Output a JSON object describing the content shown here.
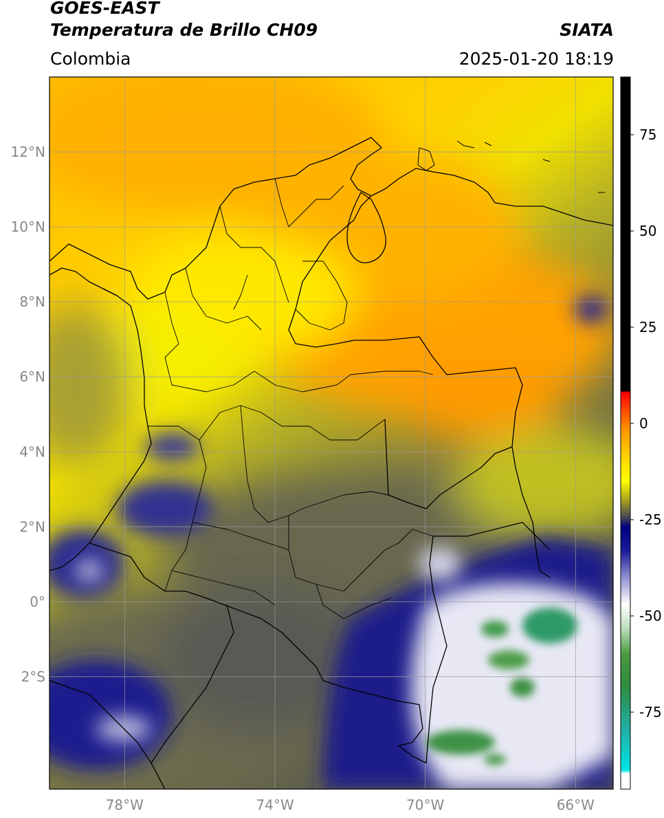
{
  "header": {
    "satellite": "GOES-EAST",
    "product": "Temperatura de Brillo CH09",
    "brand": "SIATA",
    "region": "Colombia",
    "timestamp": "2025-01-20 18:19"
  },
  "map": {
    "lon_range": [
      -80.0,
      -65.0
    ],
    "lat_range": [
      -5.0,
      14.0
    ],
    "lat_ticks": [
      {
        "value": 12,
        "label": "12°N"
      },
      {
        "value": 10,
        "label": "10°N"
      },
      {
        "value": 8,
        "label": "8°N"
      },
      {
        "value": 6,
        "label": "6°N"
      },
      {
        "value": 4,
        "label": "4°N"
      },
      {
        "value": 2,
        "label": "2°N"
      },
      {
        "value": 0,
        "label": "0°"
      },
      {
        "value": -2,
        "label": "2°S"
      }
    ],
    "lon_ticks": [
      {
        "value": -78,
        "label": "78°W"
      },
      {
        "value": -74,
        "label": "74°W"
      },
      {
        "value": -70,
        "label": "70°W"
      },
      {
        "value": -66,
        "label": "66°W"
      }
    ],
    "grid": true
  },
  "colorbar": {
    "range": [
      -95,
      90
    ],
    "ticks": [
      {
        "value": 75,
        "label": "75"
      },
      {
        "value": 50,
        "label": "50"
      },
      {
        "value": 25,
        "label": "25"
      },
      {
        "value": 0,
        "label": "0"
      },
      {
        "value": -25,
        "label": "-25"
      },
      {
        "value": -50,
        "label": "-50"
      },
      {
        "value": -75,
        "label": "-75"
      }
    ],
    "stops": [
      {
        "value": 90,
        "color": "#000000"
      },
      {
        "value": 8.5,
        "color": "#000000"
      },
      {
        "value": 8,
        "color": "#ff0000"
      },
      {
        "value": 3,
        "color": "#ff5000"
      },
      {
        "value": -2,
        "color": "#ff9900"
      },
      {
        "value": -10,
        "color": "#ffdd00"
      },
      {
        "value": -15,
        "color": "#ffff00"
      },
      {
        "value": -20,
        "color": "#a5a020"
      },
      {
        "value": -24,
        "color": "#505050"
      },
      {
        "value": -27,
        "color": "#000080"
      },
      {
        "value": -33,
        "color": "#1a1a99"
      },
      {
        "value": -40,
        "color": "#9090d0"
      },
      {
        "value": -47,
        "color": "#ffffff"
      },
      {
        "value": -53,
        "color": "#bfe0bf"
      },
      {
        "value": -60,
        "color": "#4a9a40"
      },
      {
        "value": -68,
        "color": "#2e8b3e"
      },
      {
        "value": -80,
        "color": "#20b2aa"
      },
      {
        "value": -90,
        "color": "#00e5e5"
      },
      {
        "value": -91,
        "color": "#ffffff"
      },
      {
        "value": -95,
        "color": "#ffffff"
      }
    ]
  }
}
